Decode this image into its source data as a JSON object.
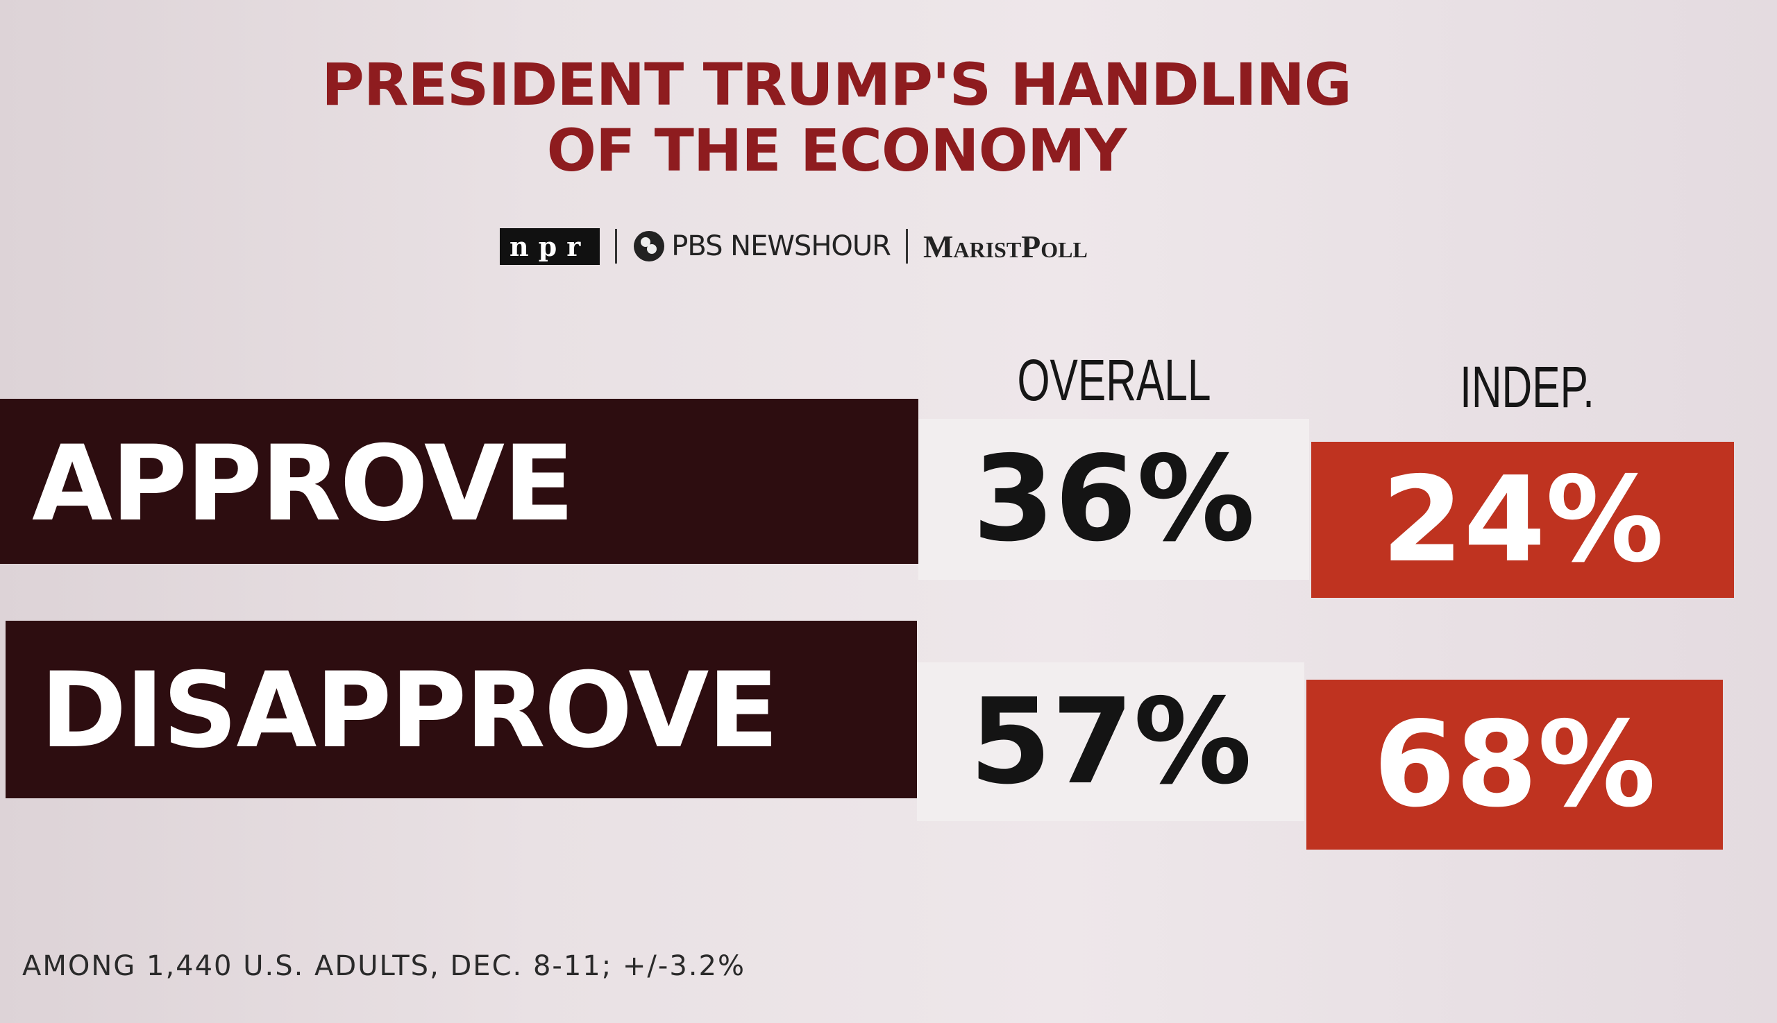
{
  "header": {
    "title": [
      "PRESIDENT TRUMP'S HANDLING",
      "OF THE ECONOMY"
    ],
    "logos": [
      "npr",
      "PBS NEWSHOUR",
      "MaristPoll"
    ]
  },
  "table": {
    "columns": [
      "OVERALL",
      "INDEP."
    ],
    "rows": [
      {
        "label": "APPROVE",
        "values": [
          "36%",
          "24%"
        ]
      },
      {
        "label": "DISAPPROVE",
        "values": [
          "57%",
          "68%"
        ]
      }
    ]
  },
  "footnote": "AMONG 1,440 U.S. ADULTS, DEC. 8-11; +/-3.2%"
}
